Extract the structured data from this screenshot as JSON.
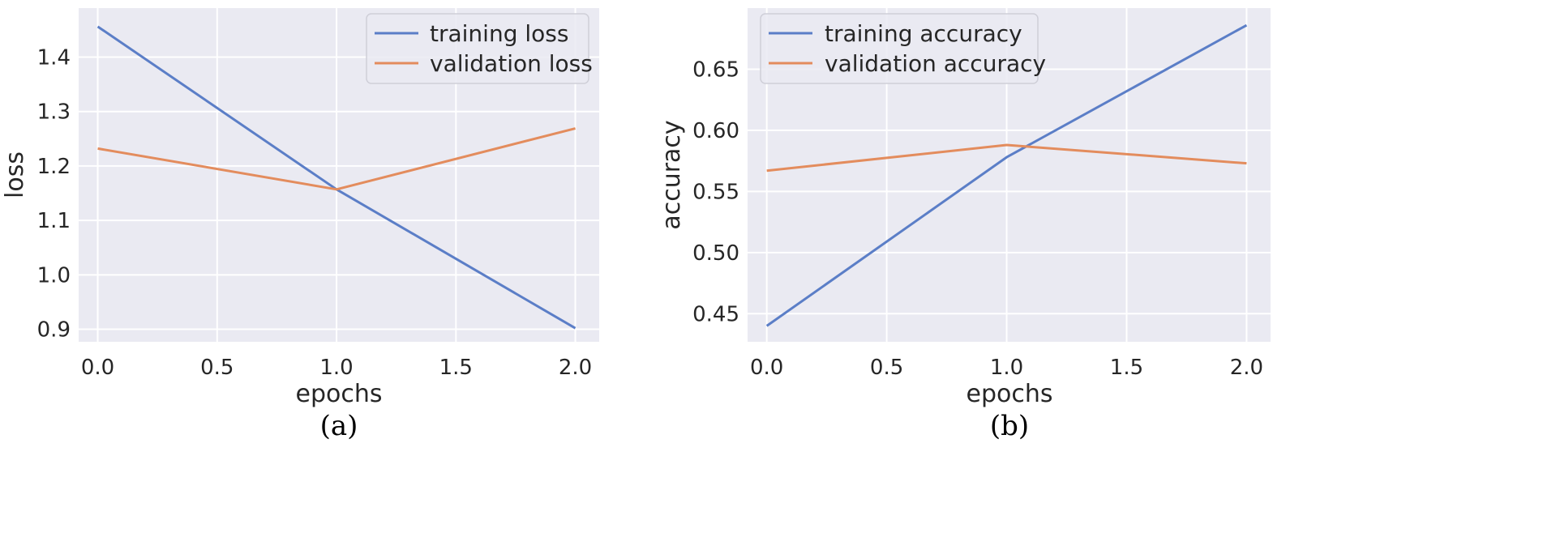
{
  "colors": {
    "background": "#eaeaf2",
    "grid": "#ffffff",
    "training": "#5b7ec7",
    "validation": "#e38c5d"
  },
  "chart_data": [
    {
      "type": "line",
      "caption": "(a)",
      "xlabel": "epochs",
      "ylabel": "loss",
      "xlim": [
        -0.08,
        2.1
      ],
      "ylim": [
        0.877,
        1.49
      ],
      "xticks": [
        0.0,
        0.5,
        1.0,
        1.5,
        2.0
      ],
      "xtick_labels": [
        "0.0",
        "0.5",
        "1.0",
        "1.5",
        "2.0"
      ],
      "yticks": [
        0.9,
        1.0,
        1.1,
        1.2,
        1.3,
        1.4
      ],
      "ytick_labels": [
        "0.9",
        "1.0",
        "1.1",
        "1.2",
        "1.3",
        "1.4"
      ],
      "grid": true,
      "legend_position": "top-right",
      "x": [
        0.0,
        1.0,
        2.0
      ],
      "series": [
        {
          "name": "training loss",
          "color_key": "training",
          "values": [
            1.456,
            1.157,
            0.902
          ]
        },
        {
          "name": "validation loss",
          "color_key": "validation",
          "values": [
            1.232,
            1.157,
            1.269
          ]
        }
      ]
    },
    {
      "type": "line",
      "caption": "(b)",
      "xlabel": "epochs",
      "ylabel": "accuracy",
      "xlim": [
        -0.08,
        2.1
      ],
      "ylim": [
        0.427,
        0.7
      ],
      "xticks": [
        0.0,
        0.5,
        1.0,
        1.5,
        2.0
      ],
      "xtick_labels": [
        "0.0",
        "0.5",
        "1.0",
        "1.5",
        "2.0"
      ],
      "yticks": [
        0.45,
        0.5,
        0.55,
        0.6,
        0.65
      ],
      "ytick_labels": [
        "0.45",
        "0.50",
        "0.55",
        "0.60",
        "0.65"
      ],
      "grid": true,
      "legend_position": "top-left",
      "x": [
        0.0,
        1.0,
        2.0
      ],
      "series": [
        {
          "name": "training accuracy",
          "color_key": "training",
          "values": [
            0.44,
            0.578,
            0.686
          ]
        },
        {
          "name": "validation accuracy",
          "color_key": "validation",
          "values": [
            0.567,
            0.588,
            0.573
          ]
        }
      ]
    }
  ]
}
